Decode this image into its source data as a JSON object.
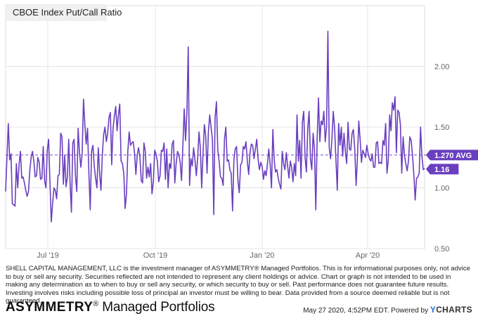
{
  "chart_data": {
    "type": "line",
    "title": "CBOE Index Put/Call Ratio",
    "x_tick_labels": [
      "Jul '19",
      "Oct '19",
      "Jan '20",
      "Apr '20"
    ],
    "y_tick_labels": [
      "0.50",
      "1.00",
      "1.50",
      "2.00"
    ],
    "y_ticks": [
      0.5,
      1.0,
      1.5,
      2.0
    ],
    "ylim": [
      0.5,
      2.5
    ],
    "average": 1.27,
    "average_label": "1.270 AVG",
    "last_value": 1.16,
    "last_label": "1.16",
    "series": [
      {
        "name": "CBOE Index Put/Call Ratio",
        "color": "#6a3fbf",
        "values": [
          0.97,
          1.25,
          1.53,
          1.23,
          1.28,
          0.87,
          0.86,
          0.85,
          1.2,
          1.0,
          1.19,
          1.3,
          1.08,
          1.09,
          1.04,
          0.98,
          0.93,
          0.97,
          1.14,
          1.25,
          1.3,
          1.22,
          1.09,
          1.1,
          1.25,
          1.21,
          1.07,
          1.08,
          1.34,
          1.06,
          1.0,
          1.31,
          1.4,
          1.05,
          0.72,
          0.87,
          1.0,
          0.98,
          0.91,
          1.1,
          1.11,
          1.45,
          1.42,
          1.03,
          1.27,
          1.01,
          1.09,
          1.4,
          1.04,
          0.8,
          1.37,
          1.4,
          1.1,
          0.97,
          1.49,
          1.29,
          1.17,
          1.28,
          1.73,
          1.52,
          1.36,
          1.49,
          1.12,
          0.82,
          1.3,
          1.35,
          1.18,
          1.08,
          1.0,
          1.33,
          1.12,
          0.98,
          1.27,
          1.44,
          1.5,
          1.38,
          1.45,
          1.58,
          1.62,
          1.19,
          1.49,
          1.59,
          1.67,
          1.47,
          1.6,
          1.69,
          1.22,
          1.2,
          1.12,
          0.83,
          0.95,
          1.3,
          1.46,
          1.35,
          1.37,
          1.38,
          1.29,
          1.11,
          1.27,
          1.33,
          1.26,
          1.06,
          1.04,
          1.37,
          1.3,
          1.08,
          1.17,
          1.09,
          1.2,
          0.95,
          1.05,
          1.31,
          1.28,
          1.22,
          1.05,
          1.1,
          1.31,
          1.3,
          1.37,
          1.07,
          1.32,
          1.0,
          1.2,
          1.16,
          1.36,
          1.39,
          1.04,
          1.2,
          1.3,
          1.27,
          1.21,
          1.06,
          1.35,
          1.65,
          1.39,
          1.62,
          2.16,
          1.02,
          1.24,
          1.18,
          1.33,
          1.23,
          1.1,
          1.24,
          1.46,
          1.33,
          1.0,
          1.28,
          1.52,
          1.43,
          1.12,
          1.46,
          1.6,
          1.5,
          1.4,
          0.78,
          1.58,
          1.71,
          1.31,
          1.22,
          1.09,
          1.08,
          1.02,
          1.4,
          1.5,
          1.22,
          1.23,
          1.15,
          1.12,
          0.81,
          1.23,
          1.32,
          1.34,
          1.06,
          0.96,
          1.19,
          1.21,
          1.34,
          1.32,
          1.38,
          1.22,
          1.11,
          1.29,
          1.36,
          1.35,
          1.24,
          1.32,
          1.4,
          1.24,
          1.15,
          1.21,
          1.18,
          1.07,
          1.14,
          1.1,
          1.2,
          1.32,
          1.19,
          1.0,
          1.48,
          1.23,
          1.13,
          1.15,
          1.08,
          1.03,
          0.99,
          1.3,
          1.2,
          1.15,
          1.29,
          1.18,
          1.08,
          1.22,
          1.17,
          1.05,
          1.2,
          1.1,
          1.6,
          1.22,
          1.39,
          1.08,
          1.54,
          1.63,
          1.25,
          1.13,
          1.49,
          1.63,
          1.24,
          1.15,
          1.45,
          1.32,
          0.82,
          1.4,
          1.74,
          1.38,
          1.55,
          1.52,
          1.63,
          1.38,
          1.5,
          2.29,
          1.33,
          1.24,
          1.4,
          1.63,
          1.49,
          1.23,
          0.98,
          1.53,
          1.35,
          1.5,
          1.26,
          1.45,
          1.3,
          1.2,
          1.54,
          1.32,
          1.31,
          1.45,
          1.48,
          1.32,
          1.02,
          1.25,
          1.55,
          1.4,
          1.21,
          1.31,
          1.28,
          1.25,
          1.35,
          1.28,
          1.24,
          1.22,
          1.28,
          1.17,
          1.17,
          1.37,
          1.38,
          1.2,
          1.21,
          1.2,
          1.39,
          1.35,
          1.53,
          1.12,
          1.23,
          1.6,
          1.47,
          1.7,
          1.64,
          1.75,
          1.29,
          1.64,
          1.62,
          1.52,
          1.12,
          1.42,
          1.27,
          1.2,
          1.14,
          1.22,
          1.42,
          1.39,
          1.27,
          1.11,
          0.9,
          1.08,
          1.09,
          1.12,
          1.5,
          1.26,
          1.15,
          1.16
        ]
      }
    ]
  },
  "colors": {
    "line": "#6a3fbf",
    "avg_line": "#7c4fd0",
    "label_bg": "#6a3fbf",
    "grid": "#e4e4e4"
  },
  "disclaimer": "SHELL CAPITAL MANAGEMENT, LLC is the investment manager of ASYMMETRY® Managed Portfolios. This is for informational purposes only, not advice to buy or sell any security. Securities reflected are not intended to represent any client holdings or advice. Chart or graph is not intended to be used in making any determination as to when to buy or sell any security, or which security to buy or sell. Past performance does not guarantee future results. Investing involves risks including possible loss of principal an investor must be willing to bear. Data provided from a source deemed reliable but is not guaranteed.",
  "brand": {
    "name": "ASYMMETRY",
    "mark": "®",
    "suffix": " Managed Portfolios"
  },
  "footer": {
    "timestamp": "May 27 2020, 4:52PM EDT.",
    "powered_by": "Powered by",
    "logo_y": "Y",
    "logo_rest": "CHARTS"
  }
}
